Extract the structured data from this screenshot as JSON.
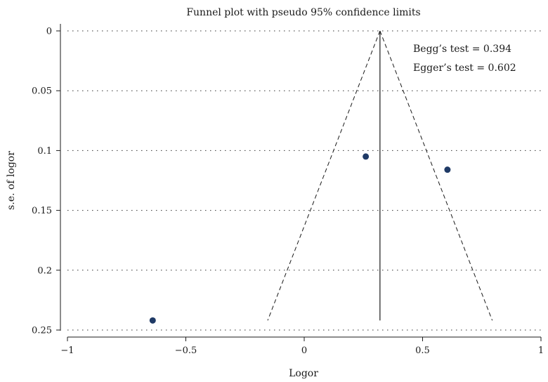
{
  "chart_data": {
    "type": "scatter",
    "title": "Funnel plot with pseudo 95% confidence limits",
    "xlabel": "Logor",
    "ylabel": "s.e. of logor",
    "xlim": [
      -1,
      1
    ],
    "ylim": [
      0,
      0.25
    ],
    "y_reversed": true,
    "x_ticks": [
      -1,
      -0.5,
      0,
      0.5,
      1
    ],
    "x_tick_labels": [
      "−1",
      "−0.5",
      "0",
      "0.5",
      "1"
    ],
    "y_ticks": [
      0,
      0.05,
      0.1,
      0.15,
      0.2,
      0.25
    ],
    "y_tick_labels": [
      "0",
      "0.05",
      "0.1",
      "0.15",
      "0.2",
      "0.25"
    ],
    "grid": true,
    "points": [
      {
        "x": -0.64,
        "y": 0.242
      },
      {
        "x": 0.26,
        "y": 0.105
      },
      {
        "x": 0.605,
        "y": 0.116
      }
    ],
    "pooled_estimate": 0.32,
    "funnel_se_max": 0.242,
    "funnel_z": 1.96,
    "annotations": [
      "Begg’s test = 0.394",
      "Egger’s test = 0.602"
    ],
    "colors": {
      "points": "#1f3a66",
      "lines": "#1a1a1a"
    }
  }
}
